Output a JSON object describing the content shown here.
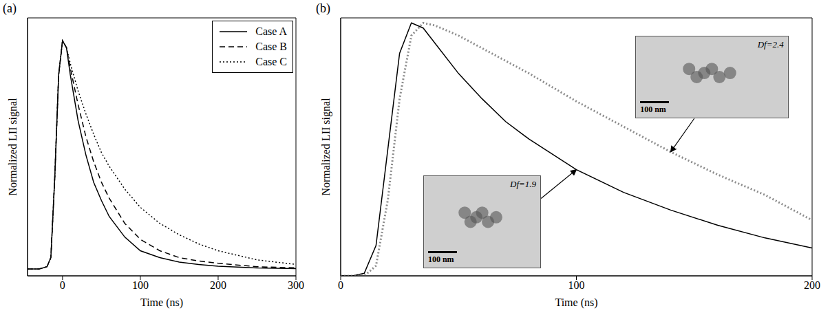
{
  "chart_data": [
    {
      "type": "line",
      "title": "(a)",
      "x_label": "Time (ns)",
      "y_label": "Normalized LII signal",
      "x": [
        -45,
        -30,
        -20,
        -15,
        -10,
        -5,
        0,
        5,
        10,
        20,
        30,
        40,
        50,
        60,
        80,
        100,
        125,
        150,
        175,
        200,
        250,
        300
      ],
      "series": [
        {
          "name": "Case A",
          "color": "#000000",
          "line_style": "solid",
          "values": [
            0,
            0,
            0.01,
            0.05,
            0.4,
            0.85,
            1.0,
            0.97,
            0.85,
            0.65,
            0.5,
            0.38,
            0.3,
            0.23,
            0.14,
            0.08,
            0.05,
            0.03,
            0.02,
            0.012,
            0.005,
            0.002
          ]
        },
        {
          "name": "Case B",
          "color": "#000000",
          "line_style": "dashed",
          "values": [
            0,
            0,
            0.01,
            0.05,
            0.4,
            0.85,
            1.0,
            0.97,
            0.88,
            0.72,
            0.58,
            0.47,
            0.38,
            0.31,
            0.2,
            0.13,
            0.08,
            0.05,
            0.035,
            0.025,
            0.01,
            0.005
          ]
        },
        {
          "name": "Case C",
          "color": "#000000",
          "line_style": "dotted",
          "values": [
            0,
            0,
            0.01,
            0.05,
            0.4,
            0.85,
            1.0,
            0.97,
            0.9,
            0.78,
            0.68,
            0.59,
            0.51,
            0.45,
            0.35,
            0.27,
            0.2,
            0.15,
            0.11,
            0.08,
            0.04,
            0.02
          ]
        }
      ],
      "xlim": [
        -45,
        300
      ],
      "xticks": [
        0,
        100,
        200,
        300
      ],
      "ylim": [
        -0.03,
        1.1
      ],
      "yticks": [
        0,
        0.2,
        0.4,
        0.6,
        0.8,
        1
      ],
      "tick_labels": "x",
      "legend": "upper right"
    },
    {
      "type": "line",
      "title": "(b)",
      "x_label": "Time (ns)",
      "y_label": "Normalized LII signal",
      "x": [
        0,
        5,
        10,
        15,
        20,
        25,
        30,
        35,
        40,
        50,
        60,
        70,
        80,
        100,
        120,
        140,
        160,
        180,
        200
      ],
      "series": [
        {
          "color": "#000000",
          "line_style": "solid",
          "values": [
            0,
            0,
            0.01,
            0.12,
            0.5,
            0.88,
            1.0,
            0.98,
            0.92,
            0.8,
            0.7,
            0.61,
            0.54,
            0.42,
            0.33,
            0.26,
            0.2,
            0.15,
            0.11
          ]
        },
        {
          "color": "#8c8c8c",
          "line_style": "dotted",
          "values": [
            0,
            0,
            0,
            0.04,
            0.3,
            0.7,
            0.95,
            1.0,
            0.99,
            0.95,
            0.9,
            0.85,
            0.8,
            0.69,
            0.59,
            0.49,
            0.4,
            0.32,
            0.22
          ]
        }
      ],
      "xlim": [
        0,
        200
      ],
      "xticks": [
        0,
        100,
        200
      ],
      "ylim": [
        0,
        1.02
      ],
      "tick_labels": "x",
      "annotations": [
        {
          "text": "Df=1.9",
          "scale_bar": "100 nm"
        },
        {
          "text": "Df=2.4",
          "scale_bar": "100 nm"
        }
      ]
    }
  ]
}
